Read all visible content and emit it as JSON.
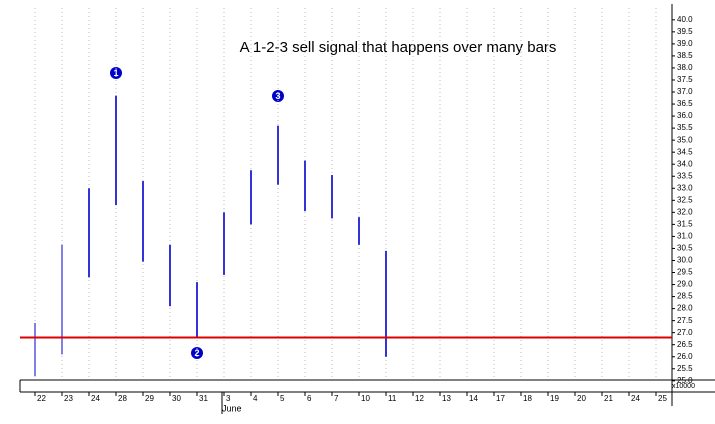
{
  "chart_data": {
    "type": "range_bar",
    "title": "A 1-2-3 sell signal that happens over many bars",
    "categories": [
      "22",
      "23",
      "24",
      "28",
      "29",
      "30",
      "31",
      "3",
      "4",
      "5",
      "6",
      "7",
      "10",
      "11",
      "12",
      "13",
      "14",
      "17",
      "18",
      "19",
      "20",
      "21",
      "24",
      "25"
    ],
    "month_label": "June",
    "series": [
      {
        "name": "High",
        "color": "#0000cc",
        "values": [
          27.4,
          30.65,
          33.0,
          36.85,
          33.3,
          30.65,
          29.1,
          32.0,
          33.75,
          35.6,
          34.15,
          33.55,
          31.8,
          30.4,
          null,
          null,
          null,
          null,
          null,
          null,
          null,
          null,
          null,
          null
        ]
      },
      {
        "name": "Low",
        "color": "#0000cc",
        "values": [
          25.2,
          26.1,
          29.3,
          32.3,
          29.95,
          28.1,
          26.8,
          29.4,
          31.5,
          33.15,
          32.05,
          31.75,
          30.65,
          26.0,
          null,
          null,
          null,
          null,
          null,
          null,
          null,
          null,
          null,
          null
        ]
      }
    ],
    "hline": {
      "value": 26.8,
      "color": "#dd0000"
    },
    "annotations": [
      "1",
      "2",
      "3"
    ],
    "volume_label": "x10000",
    "ylim": [
      25,
      40.2
    ],
    "yticks": [
      {
        "value": 25,
        "label": "25.0"
      },
      25.5,
      {
        "value": 26,
        "label": "26.0"
      },
      26.5,
      {
        "value": 27,
        "label": "27.0"
      },
      27.5,
      {
        "value": 28,
        "label": "28.0"
      },
      28.5,
      {
        "value": 29,
        "label": "29.0"
      },
      29.5,
      {
        "value": 30,
        "label": "30.0"
      },
      30.5,
      {
        "value": 31,
        "label": "31.0"
      },
      31.5,
      {
        "value": 32,
        "label": "32.0"
      },
      32.5,
      {
        "value": 33,
        "label": "33.0"
      },
      33.5,
      {
        "value": 34,
        "label": "34.0"
      },
      34.5,
      {
        "value": 35,
        "label": "35.0"
      },
      35.5,
      {
        "value": 36,
        "label": "36.0"
      },
      36.5,
      {
        "value": 37,
        "label": "37.0"
      },
      37.5,
      {
        "value": 38,
        "label": "38.0"
      },
      38.5,
      {
        "value": 39,
        "label": "39.0"
      },
      39.5,
      {
        "value": 40,
        "label": "40.0"
      }
    ],
    "grid": true
  }
}
